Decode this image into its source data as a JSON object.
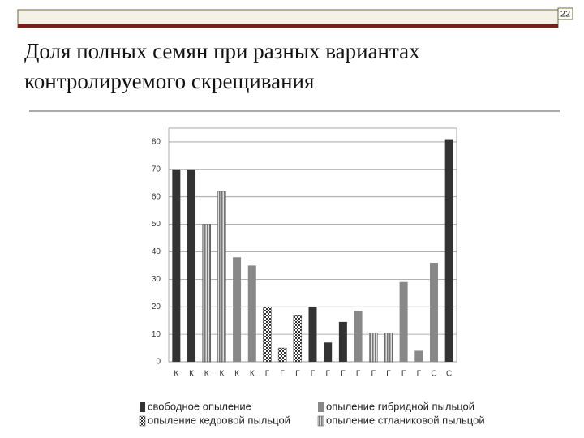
{
  "page_number": "22",
  "chart_data": {
    "type": "bar",
    "title": "Доля полных семян при разных вариантах контролируемого скрещивания",
    "title_lines": [
      "Доля полных семян при разных вариантах",
      "контролируемого скрещивания"
    ],
    "categories": [
      "К",
      "К",
      "К",
      "К",
      "К",
      "К",
      "Г",
      "Г",
      "Г",
      "Г",
      "Г",
      "Г",
      "Г",
      "Г",
      "Г",
      "Г",
      "Г",
      "С",
      "С"
    ],
    "ylim": [
      0,
      85
    ],
    "yticks": [
      0,
      10,
      20,
      30,
      40,
      50,
      60,
      70,
      80
    ],
    "grid": true,
    "series": [
      {
        "name": "свободное опыление",
        "color": "#333333",
        "pattern": "solid",
        "values": [
          70,
          70,
          null,
          null,
          null,
          null,
          null,
          null,
          null,
          20,
          7,
          14.5,
          null,
          null,
          null,
          null,
          null,
          null,
          81
        ]
      },
      {
        "name": "опыление кедровой пыльцой",
        "color": "#333333",
        "pattern": "checker",
        "values": [
          null,
          null,
          null,
          null,
          null,
          null,
          20,
          5,
          17,
          null,
          null,
          null,
          null,
          null,
          null,
          null,
          null,
          null,
          null
        ]
      },
      {
        "name": "опыление гибридной пыльцой",
        "color": "#888888",
        "pattern": "solid",
        "values": [
          null,
          null,
          null,
          null,
          38,
          35,
          null,
          null,
          null,
          null,
          null,
          null,
          18.5,
          null,
          null,
          29,
          4,
          36,
          null
        ]
      },
      {
        "name": "опыление стланиковой пыльцой",
        "color": "#999999",
        "pattern": "stripes",
        "values": [
          null,
          null,
          50,
          62,
          null,
          null,
          null,
          null,
          null,
          null,
          null,
          null,
          null,
          10.5,
          10.5,
          null,
          null,
          null,
          null
        ]
      }
    ]
  }
}
